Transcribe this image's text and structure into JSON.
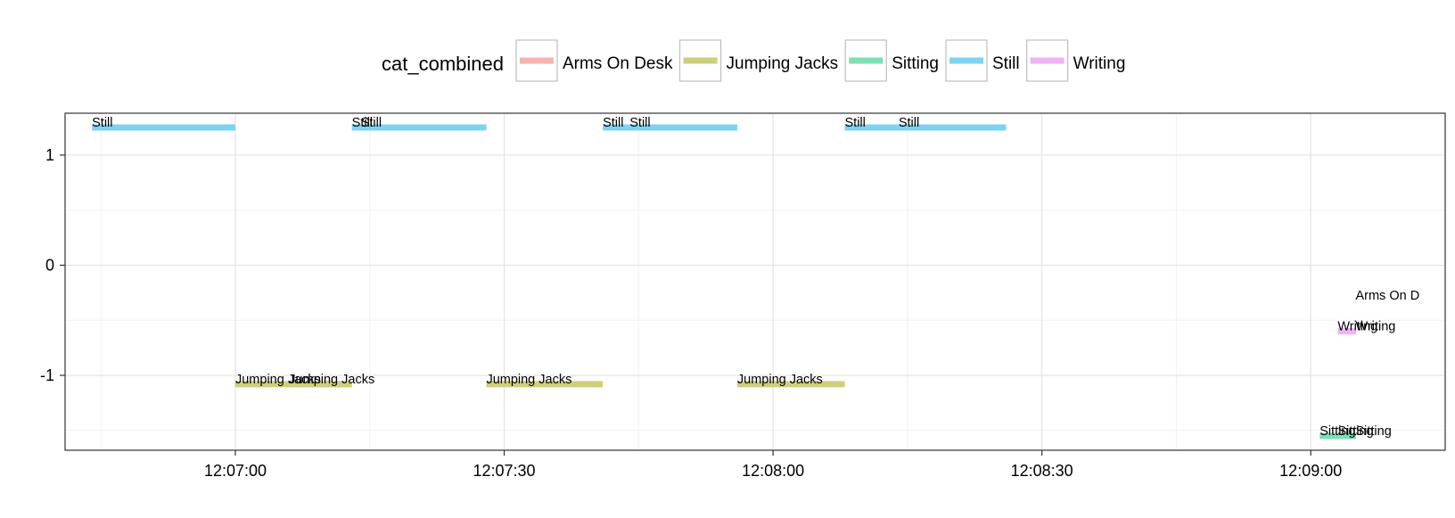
{
  "chart_data": {
    "type": "timeline",
    "legend": {
      "title": "cat_combined",
      "position": "top",
      "entries": [
        {
          "label": "Arms On Desk",
          "color": "#f8b3ae"
        },
        {
          "label": "Jumping Jacks",
          "color": "#cdcf7c"
        },
        {
          "label": "Sitting",
          "color": "#7edfb5"
        },
        {
          "label": "Still",
          "color": "#7dd3f1"
        },
        {
          "label": "Writing",
          "color": "#f0b3f6"
        }
      ]
    },
    "xlabel": "",
    "ylabel": "",
    "x_range": [
      "12:06:41",
      "12:09:15"
    ],
    "y_range": [
      -1.68,
      1.38
    ],
    "x_ticks": [
      "12:07:00",
      "12:07:30",
      "12:08:00",
      "12:08:30",
      "12:09:00"
    ],
    "y_ticks": [
      1,
      0,
      -1
    ],
    "y_tick_labels": [
      "1",
      "0",
      "-1"
    ],
    "grid": true,
    "segments": [
      {
        "category": "Still",
        "start": "12:06:44",
        "end": "12:07:00",
        "y": 1.25,
        "label": "Still"
      },
      {
        "category": "Jumping Jacks",
        "start": "12:07:00",
        "end": "12:07:13",
        "y": -1.08,
        "label": "Jumping Jacks"
      },
      {
        "category": "Jumping Jacks",
        "start": "12:07:06",
        "end": "12:07:13",
        "y": -1.08,
        "label": "Jumping Jacks"
      },
      {
        "category": "Still",
        "start": "12:07:13",
        "end": "12:07:28",
        "y": 1.25,
        "label": "Still"
      },
      {
        "category": "Still",
        "start": "12:07:14",
        "end": "12:07:28",
        "y": 1.25,
        "label": "Still"
      },
      {
        "category": "Jumping Jacks",
        "start": "12:07:28",
        "end": "12:07:41",
        "y": -1.08,
        "label": "Jumping Jacks"
      },
      {
        "category": "Still",
        "start": "12:07:41",
        "end": "12:07:56",
        "y": 1.25,
        "label": "Still"
      },
      {
        "category": "Still",
        "start": "12:07:44",
        "end": "12:07:56",
        "y": 1.25,
        "label": "Still"
      },
      {
        "category": "Jumping Jacks",
        "start": "12:07:56",
        "end": "12:08:08",
        "y": -1.08,
        "label": "Jumping Jacks"
      },
      {
        "category": "Still",
        "start": "12:08:08",
        "end": "12:08:26",
        "y": 1.25,
        "label": "Still"
      },
      {
        "category": "Still",
        "start": "12:08:14",
        "end": "12:08:26",
        "y": 1.25,
        "label": "Still"
      },
      {
        "category": "Arms On Desk",
        "start": "12:09:05",
        "end": "12:09:05",
        "y": -0.32,
        "label": "Arms On D"
      },
      {
        "category": "Writing",
        "start": "12:09:03",
        "end": "12:09:05",
        "y": -0.6,
        "label": "Writing"
      },
      {
        "category": "Writing",
        "start": "12:09:05",
        "end": "12:09:05",
        "y": -0.6,
        "label": "Writing"
      },
      {
        "category": "Sitting",
        "start": "12:09:01",
        "end": "12:09:05",
        "y": -1.55,
        "label": "Sitting"
      },
      {
        "category": "Sitting",
        "start": "12:09:03",
        "end": "12:09:05",
        "y": -1.55,
        "label": "Sitting"
      },
      {
        "category": "Sitting",
        "start": "12:09:05",
        "end": "12:09:05",
        "y": -1.55,
        "label": "Sitting"
      }
    ]
  }
}
